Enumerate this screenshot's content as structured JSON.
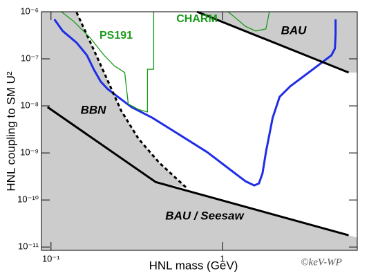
{
  "chart_data": {
    "type": "line",
    "x_label": "HNL mass (GeV)",
    "y_label": "HNL coupling to SM U²",
    "log_x": true,
    "log_y": true,
    "xlim": [
      0.088,
      6.1
    ],
    "ylim": [
      8.5e-12,
      1e-06
    ],
    "xticks": [
      {
        "value": 0.1,
        "label": "10⁻¹"
      },
      1
    ],
    "yticks": [
      {
        "value": 1e-06,
        "label": "10⁻⁶"
      },
      {
        "value": 1e-07,
        "label": "10⁻⁷"
      },
      {
        "value": 1e-08,
        "label": "10⁻⁸"
      },
      {
        "value": 1e-09,
        "label": "10⁻⁹"
      },
      {
        "value": 1e-10,
        "label": "10⁻¹⁰"
      },
      {
        "value": 1e-11,
        "label": "10⁻¹¹"
      }
    ],
    "shade_color": "#cccccc",
    "curves": [
      {
        "color": "#1f2ee6",
        "width": 3,
        "dashed": false,
        "x": [
          0.1047,
          0.117,
          0.141,
          0.162,
          0.1775,
          0.1946,
          0.2134,
          0.2454,
          0.295,
          0.389,
          0.564,
          0.816,
          1.18,
          1.36,
          1.53,
          1.63,
          1.71,
          1.79,
          1.96,
          2.15,
          2.48,
          2.98,
          3.58,
          4.31,
          4.52,
          4.56,
          4.56
        ],
        "y": [
          6.9e-07,
          3.9e-07,
          2.2e-07,
          1.19e-07,
          6e-08,
          3.3e-08,
          2.3e-08,
          1.55e-08,
          9.4e-09,
          5.6e-09,
          2.4e-09,
          1.03e-09,
          3.7e-10,
          2.5e-10,
          2.04e-10,
          2.25e-10,
          3.7e-10,
          1.03e-09,
          5.6e-09,
          1.55e-08,
          2.6e-08,
          4.3e-08,
          7.1e-08,
          1.19e-07,
          1.66e-07,
          3.3e-07,
          6.9e-07
        ]
      },
      {
        "color": "#000000",
        "width": 3,
        "dashed": true,
        "x": [
          0.141,
          0.169,
          0.204,
          0.2565,
          0.3235,
          0.427,
          0.618
        ],
        "y": [
          9.7e-07,
          2.3e-07,
          5.1e-08,
          7.9e-09,
          2e-09,
          6.2e-10,
          1.8e-10
        ]
      },
      {
        "color": "#000000",
        "width": 3,
        "dashed": false,
        "x": [
          0.0955,
          0.408,
          5.43
        ],
        "y": [
          9.4e-09,
          2.4e-10,
          1.78e-11
        ]
      },
      {
        "color": "#000000",
        "width": 3,
        "dashed": false,
        "x": [
          0.71,
          5.43
        ],
        "y": [
          1e-06,
          5.1e-08
        ]
      },
      {
        "color": "#1a9a1a",
        "width": 1.3,
        "dashed": false,
        "x": [
          0.115,
          0.1346,
          0.169,
          0.204,
          0.234,
          0.269,
          0.282,
          0.3235,
          0.365,
          0.365,
          0.397,
          0.397
        ],
        "y": [
          1e-06,
          6.4e-07,
          2.8e-07,
          1.19e-07,
          7.1e-08,
          5.1e-08,
          1.1e-08,
          8.4e-09,
          7.4e-09,
          6e-08,
          6e-08,
          1e-06
        ]
      },
      {
        "color": "#1a9a1a",
        "width": 1.3,
        "dashed": false,
        "x": [
          1.077,
          1.18,
          1.36,
          1.56,
          1.79,
          1.875
        ],
        "y": [
          1e-06,
          7.6e-07,
          4.9e-07,
          3.9e-07,
          4.3e-07,
          1e-06
        ]
      }
    ],
    "annotations": [
      {
        "text": "PS191",
        "color": "#1a9a1a"
      },
      {
        "text": "CHARM",
        "color": "#1a9a1a"
      },
      {
        "text": "BAU",
        "color": "#000000"
      },
      {
        "text": "BBN",
        "color": "#000000"
      },
      {
        "text": "BAU / Seesaw",
        "color": "#000000"
      },
      {
        "text": "©keV-WP",
        "color": "#555555"
      }
    ]
  }
}
